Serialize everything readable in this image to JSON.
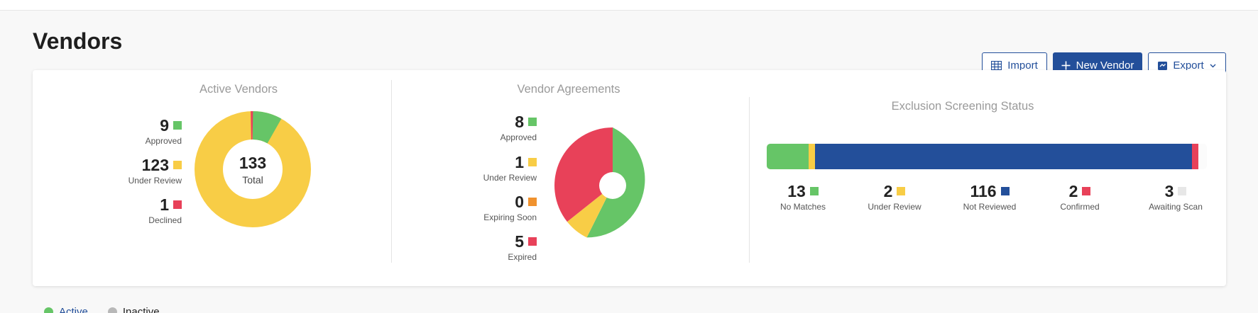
{
  "page": {
    "title": "Vendors"
  },
  "toolbar": {
    "import_label": "Import",
    "new_vendor_label": "New Vendor",
    "export_label": "Export"
  },
  "colors": {
    "brand": "#234f9a",
    "green": "#66c567",
    "yellow": "#f8cd46",
    "red": "#e84159",
    "orange": "#f0922e",
    "blue": "#234f9a",
    "grey": "#e7e7e7"
  },
  "active_vendors": {
    "title": "Active Vendors",
    "total": "133",
    "total_label": "Total",
    "stats": [
      {
        "value": "9",
        "label": "Approved",
        "color": "#66c567"
      },
      {
        "value": "123",
        "label": "Under Review",
        "color": "#f8cd46"
      },
      {
        "value": "1",
        "label": "Declined",
        "color": "#e84159"
      }
    ]
  },
  "vendor_agreements": {
    "title": "Vendor Agreements",
    "stats": [
      {
        "value": "8",
        "label": "Approved",
        "color": "#66c567"
      },
      {
        "value": "1",
        "label": "Under Review",
        "color": "#f8cd46"
      },
      {
        "value": "0",
        "label": "Expiring Soon",
        "color": "#f0922e"
      },
      {
        "value": "5",
        "label": "Expired",
        "color": "#e84159"
      }
    ]
  },
  "exclusion_screening": {
    "title": "Exclusion Screening Status",
    "stats": [
      {
        "value": "13",
        "label": "No Matches",
        "color": "#66c567"
      },
      {
        "value": "2",
        "label": "Under Review",
        "color": "#f8cd46"
      },
      {
        "value": "116",
        "label": "Not Reviewed",
        "color": "#234f9a"
      },
      {
        "value": "2",
        "label": "Confirmed",
        "color": "#e84159"
      },
      {
        "value": "3",
        "label": "Awaiting Scan",
        "color": "#e7e7e7"
      }
    ]
  },
  "filter_legend": {
    "items": [
      {
        "label": "Active",
        "color": "#66c567"
      },
      {
        "label": "Inactive",
        "color": "#b8b8b8"
      }
    ]
  }
}
